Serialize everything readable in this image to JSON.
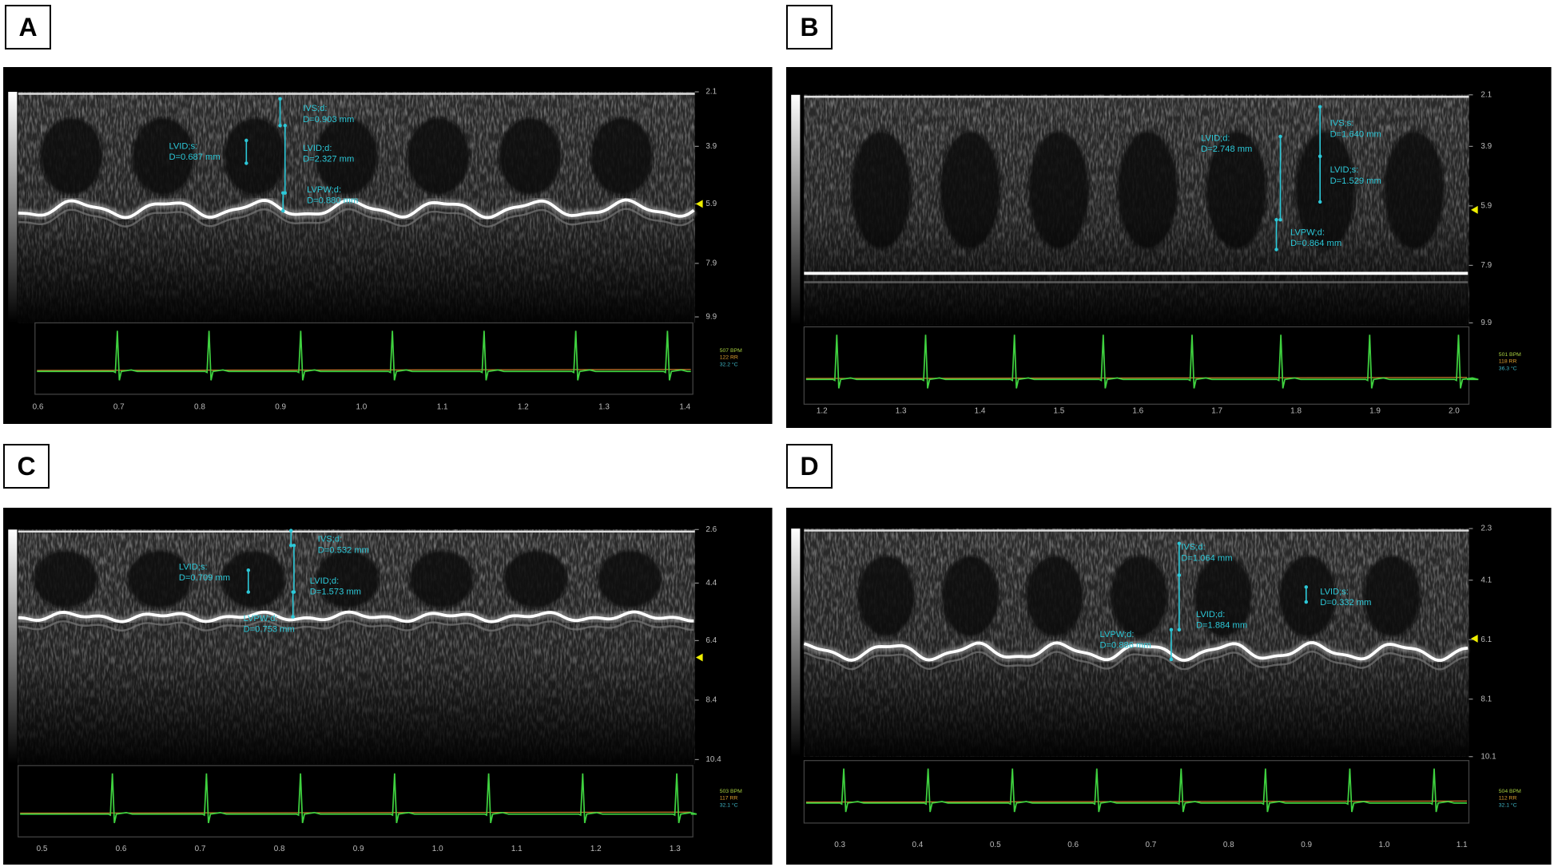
{
  "panels": [
    {
      "label": "A",
      "depth_ticks": [
        "2.1",
        "3.9",
        "5.9",
        "7.9",
        "9.9"
      ],
      "time_ticks": [
        "0.6",
        "0.7",
        "0.8",
        "0.9",
        "1.0",
        "1.1",
        "1.2",
        "1.3",
        "1.4"
      ],
      "vitals": [
        "507 BPM",
        "122 RR",
        "32.2 °C"
      ],
      "measurements": [
        {
          "name": "IVS;d:",
          "value": "D=0.903 mm"
        },
        {
          "name": "LVID;d:",
          "value": "D=2.327 mm"
        },
        {
          "name": "LVPW;d:",
          "value": "D=0.880 mm"
        },
        {
          "name": "LVID;s:",
          "value": "D=0.687 mm"
        }
      ]
    },
    {
      "label": "B",
      "depth_ticks": [
        "2.1",
        "3.9",
        "5.9",
        "7.9",
        "9.9"
      ],
      "time_ticks": [
        "1.2",
        "1.3",
        "1.4",
        "1.5",
        "1.6",
        "1.7",
        "1.8",
        "1.9",
        "2.0"
      ],
      "vitals": [
        "501 BPM",
        "118 RR",
        "36.3 °C"
      ],
      "measurements": [
        {
          "name": "IVS;s:",
          "value": "D=1.640 mm"
        },
        {
          "name": "LVID;s:",
          "value": "D=1.529 mm"
        },
        {
          "name": "LVID;d:",
          "value": "D=2.748 mm"
        },
        {
          "name": "LVPW;d:",
          "value": "D=0.864 mm"
        }
      ]
    },
    {
      "label": "C",
      "depth_ticks": [
        "2.6",
        "4.4",
        "6.4",
        "8.4",
        "10.4"
      ],
      "time_ticks": [
        "0.5",
        "0.6",
        "0.7",
        "0.8",
        "0.9",
        "1.0",
        "1.1",
        "1.2",
        "1.3"
      ],
      "vitals": [
        "503 BPM",
        "117 RR",
        "32.1 °C"
      ],
      "measurements": [
        {
          "name": "IVS;d:",
          "value": "D=0.532 mm"
        },
        {
          "name": "LVID;d:",
          "value": "D=1.573 mm"
        },
        {
          "name": "LVPW;d:",
          "value": "D=0.753 mm"
        },
        {
          "name": "LVID;s:",
          "value": "D=0.709 mm"
        }
      ]
    },
    {
      "label": "D",
      "depth_ticks": [
        "2.3",
        "4.1",
        "6.1",
        "8.1",
        "10.1"
      ],
      "time_ticks": [
        "0.3",
        "0.4",
        "0.5",
        "0.6",
        "0.7",
        "0.8",
        "0.9",
        "1.0",
        "1.1"
      ],
      "vitals": [
        "504 BPM",
        "112 RR",
        "32.1 °C"
      ],
      "measurements": [
        {
          "name": "IVS;d:",
          "value": "D=1.064 mm"
        },
        {
          "name": "LVID;d:",
          "value": "D=1.884 mm"
        },
        {
          "name": "LVPW;d:",
          "value": "D=0.886 mm"
        },
        {
          "name": "LVID;s:",
          "value": "D=0.332 mm"
        }
      ]
    }
  ]
}
